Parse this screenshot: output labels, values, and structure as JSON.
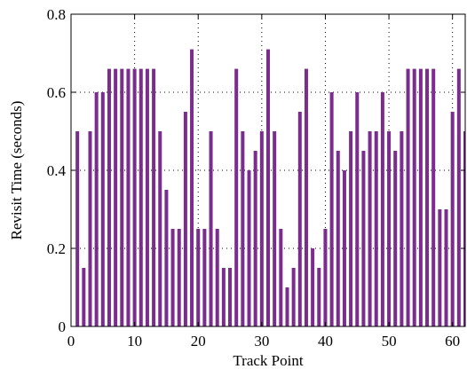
{
  "chart_data": {
    "type": "bar",
    "title": "",
    "xlabel": "Track Point",
    "ylabel": "Revisit Time (seconds)",
    "xlim": [
      0,
      62
    ],
    "ylim": [
      0,
      0.8
    ],
    "x_ticks": [
      0,
      10,
      20,
      30,
      40,
      50,
      60
    ],
    "x_tick_labels": [
      "0",
      "10",
      "20",
      "30",
      "40",
      "50",
      "60"
    ],
    "y_ticks": [
      0,
      0.2,
      0.4,
      0.6,
      0.8
    ],
    "y_tick_labels": [
      "0",
      "0.2",
      "0.4",
      "0.6",
      "0.8"
    ],
    "grid": true,
    "bar_color": "#7b2d8e",
    "x": [
      1,
      2,
      3,
      4,
      5,
      6,
      7,
      8,
      9,
      10,
      11,
      12,
      13,
      14,
      15,
      16,
      17,
      18,
      19,
      20,
      21,
      22,
      23,
      24,
      25,
      26,
      27,
      28,
      29,
      30,
      31,
      32,
      33,
      34,
      35,
      36,
      37,
      38,
      39,
      40,
      41,
      42,
      43,
      44,
      45,
      46,
      47,
      48,
      49,
      50,
      51,
      52,
      53,
      54,
      55,
      56,
      57,
      58,
      59,
      60,
      61,
      62
    ],
    "values": [
      0.5,
      0.15,
      0.5,
      0.6,
      0.6,
      0.66,
      0.66,
      0.66,
      0.66,
      0.66,
      0.66,
      0.66,
      0.66,
      0.5,
      0.35,
      0.25,
      0.25,
      0.55,
      0.71,
      0.25,
      0.25,
      0.5,
      0.25,
      0.15,
      0.15,
      0.66,
      0.5,
      0.4,
      0.45,
      0.5,
      0.71,
      0.5,
      0.25,
      0.1,
      0.15,
      0.55,
      0.66,
      0.2,
      0.15,
      0.25,
      0.6,
      0.45,
      0.4,
      0.5,
      0.6,
      0.45,
      0.5,
      0.5,
      0.6,
      0.5,
      0.45,
      0.5,
      0.66,
      0.66,
      0.66,
      0.66,
      0.66,
      0.3,
      0.3,
      0.55,
      0.66,
      0.5
    ]
  }
}
